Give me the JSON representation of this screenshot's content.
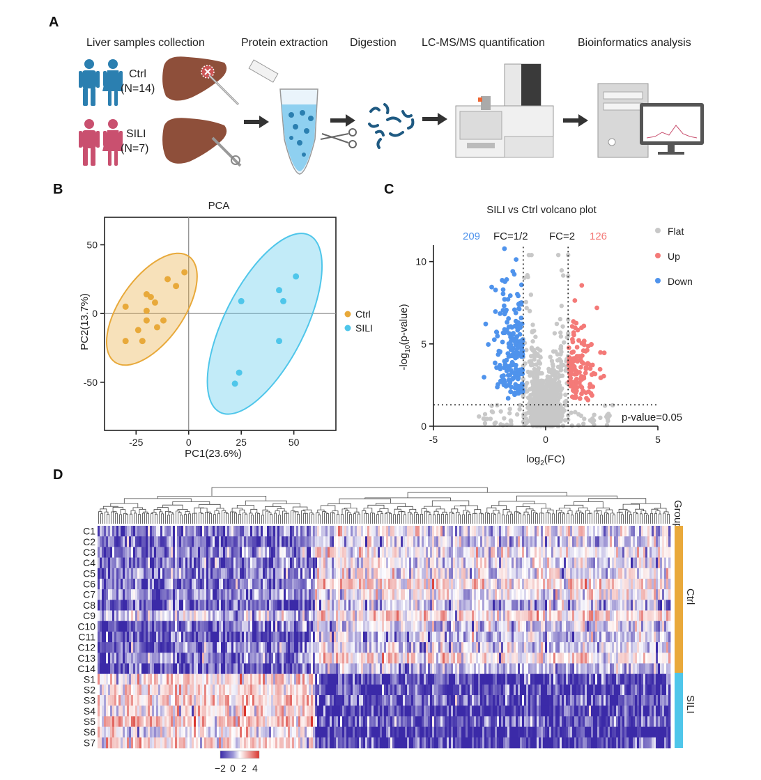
{
  "colors": {
    "ctrl": "#e8a93a",
    "sili": "#4fc6ea",
    "up": "#f47a78",
    "down": "#4f93ec",
    "flat": "#c8c8c8",
    "man": "#2b7fb0",
    "woman": "#2b7fb0",
    "sili_person": "#c9506f",
    "liver": "#8e4f3a",
    "group_ctrl": "#e9a93b",
    "group_sili": "#4fc6ea"
  },
  "panel_a": {
    "letter": "A",
    "steps": [
      "Liver samples collection",
      "Protein extraction",
      "Digestion",
      "LC-MS/MS quantification",
      "Bioinformatics analysis"
    ],
    "groups": [
      {
        "name": "Ctrl",
        "n": "(N=14)"
      },
      {
        "name": "SILI",
        "n": "(N=7)"
      }
    ]
  },
  "panel_b": {
    "letter": "B",
    "legend": [
      "Ctrl",
      "SILI"
    ],
    "chart_data": {
      "type": "scatter",
      "title": "PCA",
      "xlabel": "PC1(23.6%)",
      "ylabel": "PC2(13.7%)",
      "xlim": [
        -40,
        70
      ],
      "ylim": [
        -85,
        70
      ],
      "xticks": [
        -25,
        0,
        25,
        50
      ],
      "yticks": [
        -50,
        0,
        50
      ],
      "series": [
        {
          "name": "Ctrl",
          "points": [
            [
              -30,
              5
            ],
            [
              -20,
              14
            ],
            [
              -18,
              12
            ],
            [
              -10,
              25
            ],
            [
              -2,
              30
            ],
            [
              -6,
              20
            ],
            [
              -20,
              2
            ],
            [
              -16,
              8
            ],
            [
              -24,
              -12
            ],
            [
              -20,
              -5
            ],
            [
              -15,
              -10
            ],
            [
              -12,
              -5
            ],
            [
              -30,
              -20
            ],
            [
              -22,
              -20
            ]
          ]
        },
        {
          "name": "SILI",
          "points": [
            [
              25,
              9
            ],
            [
              43,
              17
            ],
            [
              51,
              27
            ],
            [
              45,
              9
            ],
            [
              43,
              -20
            ],
            [
              24,
              -43
            ],
            [
              22,
              -51
            ]
          ]
        }
      ]
    }
  },
  "panel_c": {
    "letter": "C",
    "down_count": "209",
    "up_count": "126",
    "fc_left": "FC=1/2",
    "fc_right": "FC=2",
    "pval_label": "p-value=0.05",
    "legend": [
      "Flat",
      "Up",
      "Down"
    ],
    "chart_data": {
      "type": "scatter",
      "title": "SILI vs Ctrl volcano plot",
      "xlabel": "log2(FC)",
      "ylabel": "-log10(p-value)",
      "xlim": [
        -5,
        5
      ],
      "ylim": [
        0,
        11
      ],
      "xticks": [
        -5,
        0,
        5
      ],
      "yticks": [
        0,
        5,
        10
      ],
      "thresholds": {
        "log2fc": [
          -1,
          1
        ],
        "neg_log10_p": 1.3
      },
      "series": [
        {
          "name": "Down",
          "count": 209
        },
        {
          "name": "Up",
          "count": 126
        },
        {
          "name": "Flat"
        }
      ]
    }
  },
  "panel_d": {
    "letter": "D",
    "group_label": "Group",
    "group_names": [
      "Ctrl",
      "SILI"
    ],
    "colorbar_ticks": [
      "−2",
      "0",
      "2",
      "4"
    ],
    "chart_data": {
      "type": "heatmap",
      "rows": [
        "C1",
        "C2",
        "C3",
        "C4",
        "C5",
        "C6",
        "C7",
        "C8",
        "C9",
        "C10",
        "C11",
        "C12",
        "C13",
        "C14",
        "S1",
        "S2",
        "S3",
        "S4",
        "S5",
        "S6",
        "S7"
      ],
      "groups": [
        {
          "name": "Ctrl",
          "rows": 14
        },
        {
          "name": "SILI",
          "rows": 7
        }
      ],
      "scale": [
        -2,
        4
      ]
    }
  }
}
